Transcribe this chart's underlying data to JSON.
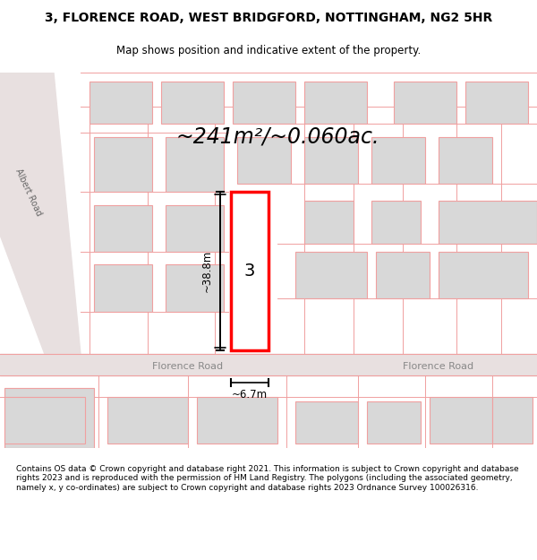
{
  "title_line1": "3, FLORENCE ROAD, WEST BRIDGFORD, NOTTINGHAM, NG2 5HR",
  "title_line2": "Map shows position and indicative extent of the property.",
  "area_text": "~241m²/~0.060ac.",
  "dim_height": "~38.8m",
  "dim_width": "~6.7m",
  "property_number": "3",
  "road_label1": "Florence Road",
  "road_label2": "Florence Road",
  "albert_road_label": "Albert Road",
  "footer_text": "Contains OS data © Crown copyright and database right 2021. This information is subject to Crown copyright and database rights 2023 and is reproduced with the permission of HM Land Registry. The polygons (including the associated geometry, namely x, y co-ordinates) are subject to Crown copyright and database rights 2023 Ordnance Survey 100026316.",
  "bg_color": "#f5f0f0",
  "map_bg": "#ffffff",
  "road_color": "#e8d8d8",
  "block_color": "#e0e0e0",
  "highlight_color": "#ff0000",
  "albert_road_bg": "#d8e8d8",
  "road_line_color": "#c8b8b8",
  "dim_line_color": "#000000"
}
